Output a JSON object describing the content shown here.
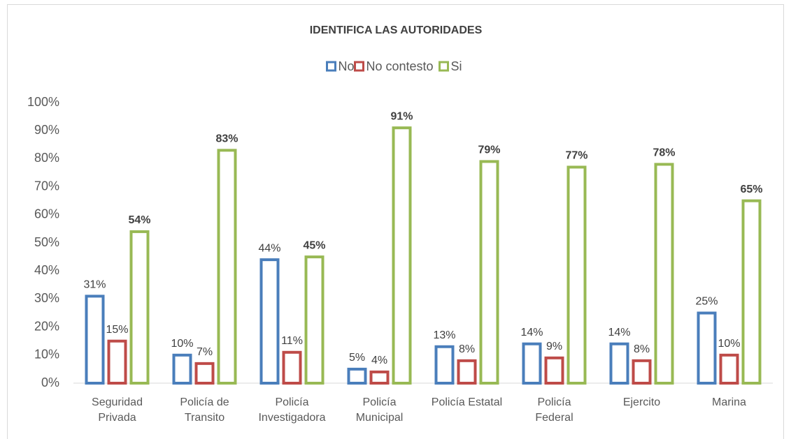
{
  "chart_data": {
    "type": "bar",
    "title": "IDENTIFICA LAS AUTORIDADES",
    "categories": [
      "Seguridad\nPrivada",
      "Policía de\nTransito",
      "Policía\nInvestigadora",
      "Policía\nMunicipal",
      "Policía Estatal",
      "Policía\nFederal",
      "Ejercito",
      "Marina"
    ],
    "series": [
      {
        "name": "No",
        "color": "#4a7ebb",
        "values": [
          31,
          10,
          44,
          5,
          13,
          14,
          14,
          25
        ],
        "value_labels": [
          "31%",
          "10%",
          "44%",
          "5%",
          "13%",
          "14%",
          "14%",
          "25%"
        ]
      },
      {
        "name": "No contesto",
        "color": "#be4b48",
        "values": [
          15,
          7,
          11,
          4,
          8,
          9,
          8,
          10
        ],
        "value_labels": [
          "15%",
          "7%",
          "11%",
          "4%",
          "8%",
          "9%",
          "8%",
          "10%"
        ]
      },
      {
        "name": "Si",
        "color": "#98b954",
        "values": [
          54,
          83,
          45,
          91,
          79,
          77,
          78,
          65
        ],
        "value_labels": [
          "54%",
          "83%",
          "45%",
          "91%",
          "79%",
          "77%",
          "78%",
          "65%"
        ],
        "bold_labels": true
      }
    ],
    "ylim": [
      0,
      100
    ],
    "yticks": [
      {
        "value": 0,
        "label": "0%"
      },
      {
        "value": 10,
        "label": "10%"
      },
      {
        "value": 20,
        "label": "20%"
      },
      {
        "value": 30,
        "label": "30%"
      },
      {
        "value": 40,
        "label": "40%"
      },
      {
        "value": 50,
        "label": "50%"
      },
      {
        "value": 60,
        "label": "60%"
      },
      {
        "value": 70,
        "label": "70%"
      },
      {
        "value": 80,
        "label": "80%"
      },
      {
        "value": 90,
        "label": "90%"
      },
      {
        "value": 100,
        "label": "100%"
      }
    ],
    "grid": false,
    "legend": "top"
  }
}
